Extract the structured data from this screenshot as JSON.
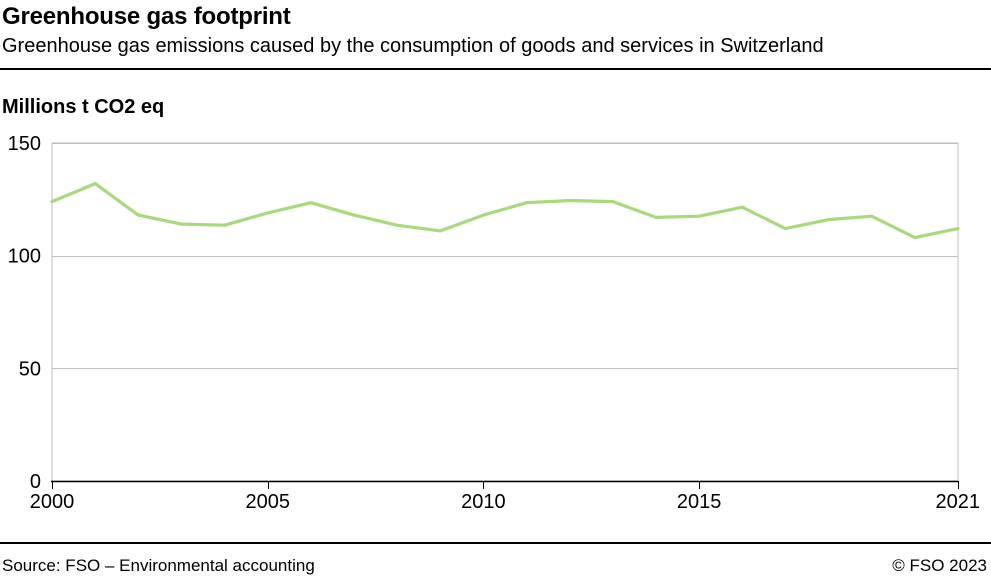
{
  "header": {
    "title": "Greenhouse gas footprint",
    "subtitle": "Greenhouse gas emissions caused by the consumption of goods and services in Switzerland",
    "unit_label": "Millions t CO2 eq"
  },
  "footer": {
    "source": "Source: FSO – Environmental accounting",
    "copyright": "© FSO 2023"
  },
  "colors": {
    "line": "#a8d97a",
    "grid": "#bfbfbf",
    "axis": "#000000"
  },
  "chart_data": {
    "type": "line",
    "title": "Greenhouse gas footprint",
    "subtitle": "Greenhouse gas emissions caused by the consumption of goods and services in Switzerland",
    "ylabel": "Millions t CO2 eq",
    "xlabel": "",
    "xlim": [
      2000,
      2021
    ],
    "ylim": [
      0,
      150
    ],
    "x_ticks": [
      2000,
      2005,
      2010,
      2015,
      2021
    ],
    "y_ticks": [
      0,
      50,
      100,
      150
    ],
    "grid": true,
    "legend": "none",
    "series": [
      {
        "name": "Greenhouse gas footprint",
        "x": [
          2000,
          2001,
          2002,
          2003,
          2004,
          2005,
          2006,
          2007,
          2008,
          2009,
          2010,
          2011,
          2012,
          2013,
          2014,
          2015,
          2016,
          2017,
          2018,
          2019,
          2020,
          2021
        ],
        "values": [
          124,
          132,
          118,
          114,
          113.5,
          119,
          123.5,
          118,
          113.5,
          111,
          118,
          123.5,
          124.5,
          124,
          117,
          117.5,
          121.5,
          112,
          116,
          117.5,
          108,
          112
        ]
      }
    ]
  }
}
